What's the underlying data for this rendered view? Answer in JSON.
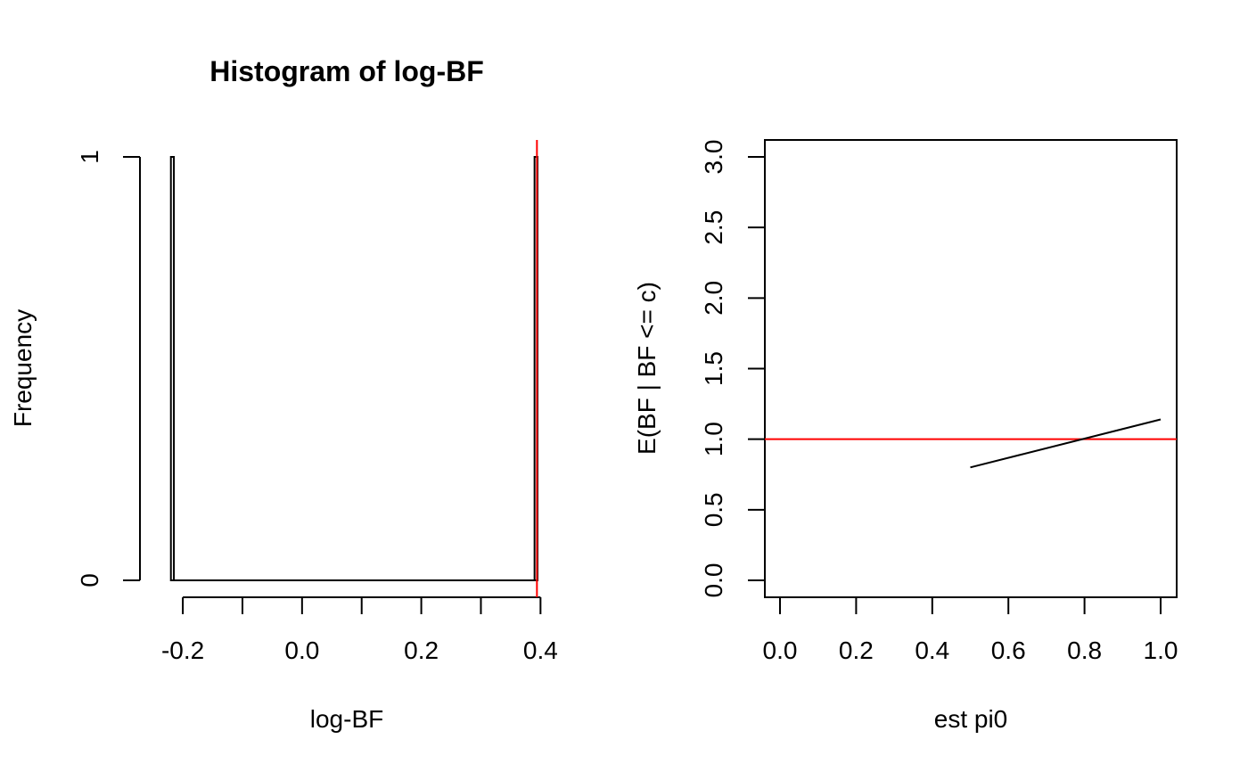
{
  "chart_data": [
    {
      "type": "bar",
      "title": "Histogram of log-BF",
      "xlabel": "log-BF",
      "ylabel": "Frequency",
      "bins": [
        {
          "from": -0.22,
          "to": -0.215,
          "count": 1
        },
        {
          "from": -0.215,
          "to": 0.39,
          "count": 0
        },
        {
          "from": 0.39,
          "to": 0.395,
          "count": 1
        }
      ],
      "xlim": [
        -0.245,
        0.395
      ],
      "ylim": [
        0,
        1
      ],
      "xticks": [
        -0.2,
        -0.1,
        0.0,
        0.1,
        0.2,
        0.3,
        0.4
      ],
      "xtick_labels": [
        "-0.2",
        "",
        "0.0",
        "",
        "0.2",
        "",
        "0.4"
      ],
      "yticks": [
        0,
        1
      ],
      "ytick_labels": [
        "0",
        "1"
      ],
      "vline": {
        "x": 0.394,
        "color": "#ff0000"
      },
      "box": false,
      "grid": false
    },
    {
      "type": "line",
      "title": "",
      "xlabel": "est pi0",
      "ylabel": "E(BF | BF <= c)",
      "x": [
        0.5,
        1.0
      ],
      "series": [
        {
          "values": [
            0.8,
            1.14
          ],
          "color": "#000000"
        }
      ],
      "xlim": [
        0.0,
        1.0
      ],
      "ylim": [
        0.0,
        3.0
      ],
      "xticks": [
        0.0,
        0.2,
        0.4,
        0.6,
        0.8,
        1.0
      ],
      "xtick_labels": [
        "0.0",
        "0.2",
        "0.4",
        "0.6",
        "0.8",
        "1.0"
      ],
      "yticks": [
        0.0,
        0.5,
        1.0,
        1.5,
        2.0,
        2.5,
        3.0
      ],
      "ytick_labels": [
        "0.0",
        "0.5",
        "1.0",
        "1.5",
        "2.0",
        "2.5",
        "3.0"
      ],
      "hline": {
        "y": 1.0,
        "color": "#ff0000"
      },
      "box": true,
      "grid": false
    }
  ]
}
